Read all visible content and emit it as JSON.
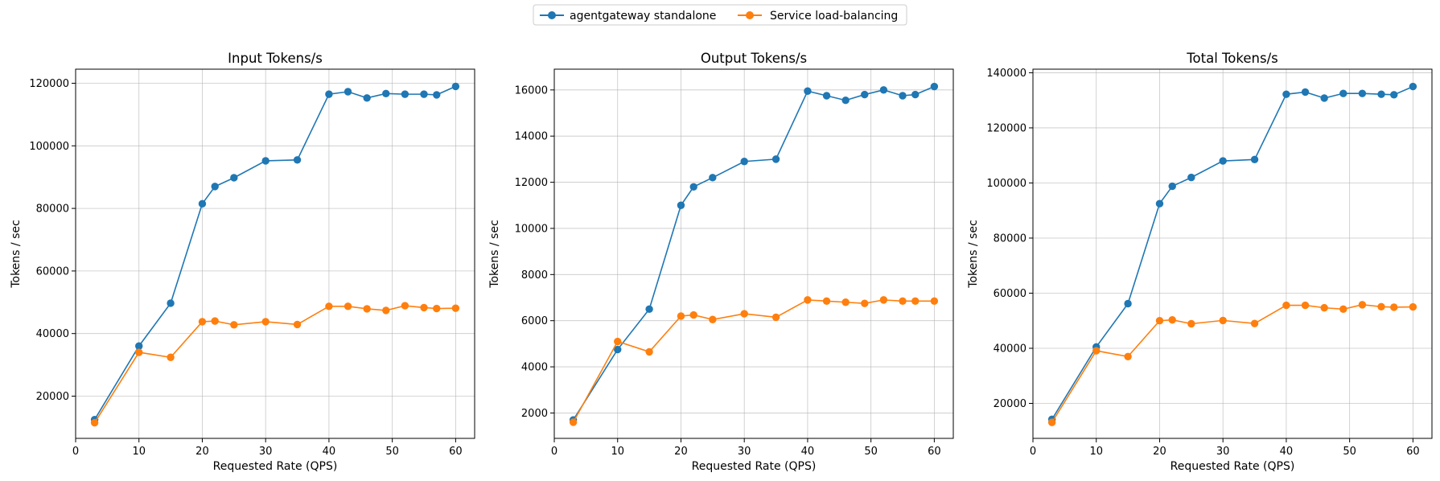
{
  "legend": {
    "placement": "top-center",
    "entries": [
      {
        "label": "agentgateway standalone",
        "color": "#1f77b4"
      },
      {
        "label": "Service load-balancing",
        "color": "#ff7f0e"
      }
    ]
  },
  "chart_data": [
    {
      "type": "line",
      "title": "Input Tokens/s",
      "xlabel": "Requested Rate (QPS)",
      "ylabel": "Tokens / sec",
      "grid": true,
      "xlim": [
        0,
        63
      ],
      "ylim": [
        6500,
        124500
      ],
      "xticks": [
        0,
        10,
        20,
        30,
        40,
        50,
        60
      ],
      "yticks": [
        20000,
        40000,
        60000,
        80000,
        100000,
        120000
      ],
      "x": [
        3,
        10,
        15,
        20,
        22,
        25,
        30,
        35,
        40,
        43,
        46,
        49,
        52,
        55,
        57,
        60
      ],
      "series": [
        {
          "name": "agentgateway standalone",
          "color": "#1f77b4",
          "values": [
            12500,
            36000,
            49700,
            81500,
            87000,
            89800,
            95200,
            95500,
            116500,
            117300,
            115300,
            116700,
            116500,
            116500,
            116300,
            119000
          ]
        },
        {
          "name": "Service load-balancing",
          "color": "#ff7f0e",
          "values": [
            11500,
            34000,
            32400,
            43800,
            44000,
            42800,
            43800,
            42900,
            48700,
            48700,
            47900,
            47400,
            48900,
            48300,
            48000,
            48100
          ]
        }
      ]
    },
    {
      "type": "line",
      "title": "Output Tokens/s",
      "xlabel": "Requested Rate (QPS)",
      "ylabel": "Tokens / sec",
      "grid": true,
      "xlim": [
        0,
        63
      ],
      "ylim": [
        900,
        16900
      ],
      "xticks": [
        0,
        10,
        20,
        30,
        40,
        50,
        60
      ],
      "yticks": [
        2000,
        4000,
        6000,
        8000,
        10000,
        12000,
        14000,
        16000
      ],
      "x": [
        3,
        10,
        15,
        20,
        22,
        25,
        30,
        35,
        40,
        43,
        46,
        49,
        52,
        55,
        57,
        60
      ],
      "series": [
        {
          "name": "agentgateway standalone",
          "color": "#1f77b4",
          "values": [
            1700,
            4750,
            6500,
            11000,
            11800,
            12200,
            12900,
            13000,
            15950,
            15750,
            15550,
            15800,
            16000,
            15750,
            15800,
            16150
          ]
        },
        {
          "name": "Service load-balancing",
          "color": "#ff7f0e",
          "values": [
            1600,
            5100,
            4650,
            6200,
            6250,
            6050,
            6300,
            6150,
            6900,
            6850,
            6800,
            6750,
            6900,
            6850,
            6850,
            6850
          ]
        }
      ]
    },
    {
      "type": "line",
      "title": "Total Tokens/s",
      "xlabel": "Requested Rate (QPS)",
      "ylabel": "Tokens / sec",
      "grid": true,
      "xlim": [
        0,
        63
      ],
      "ylim": [
        7300,
        141300
      ],
      "xticks": [
        0,
        10,
        20,
        30,
        40,
        50,
        60
      ],
      "yticks": [
        20000,
        40000,
        60000,
        80000,
        100000,
        120000,
        140000
      ],
      "x": [
        3,
        10,
        15,
        20,
        22,
        25,
        30,
        35,
        40,
        43,
        46,
        49,
        52,
        55,
        57,
        60
      ],
      "series": [
        {
          "name": "agentgateway standalone",
          "color": "#1f77b4",
          "values": [
            14200,
            40500,
            56200,
            92500,
            98800,
            102000,
            108000,
            108500,
            132200,
            133000,
            130800,
            132500,
            132500,
            132200,
            132000,
            135000
          ]
        },
        {
          "name": "Service load-balancing",
          "color": "#ff7f0e",
          "values": [
            13100,
            39100,
            37000,
            50000,
            50300,
            48900,
            50100,
            49000,
            55600,
            55600,
            54700,
            54200,
            55800,
            55100,
            54900,
            55000
          ]
        }
      ]
    }
  ]
}
